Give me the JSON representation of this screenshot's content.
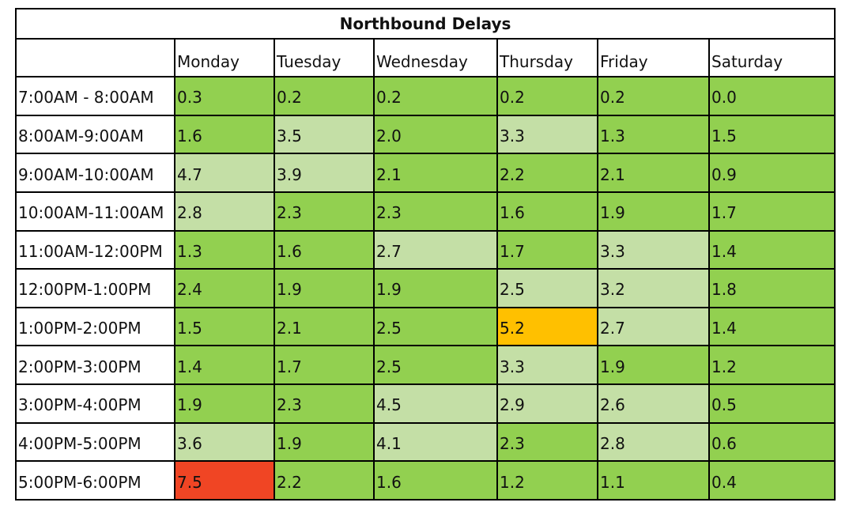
{
  "chart_data": {
    "type": "heatmap",
    "title": "Northbound Delays",
    "columns": [
      "Monday",
      "Tuesday",
      "Wednesday",
      "Thursday",
      "Friday",
      "Saturday"
    ],
    "rows": [
      "7:00AM - 8:00AM",
      "8:00AM-9:00AM",
      "9:00AM-10:00AM",
      "10:00AM-11:00AM",
      "11:00AM-12:00PM",
      "12:00PM-1:00PM",
      "1:00PM-2:00PM",
      "2:00PM-3:00PM",
      "3:00PM-4:00PM",
      "4:00PM-5:00PM",
      "5:00PM-6:00PM"
    ],
    "values": [
      [
        "0.3",
        "0.2",
        "0.2",
        "0.2",
        "0.2",
        "0.0"
      ],
      [
        "1.6",
        "3.5",
        "2.0",
        "3.3",
        "1.3",
        "1.5"
      ],
      [
        "4.7",
        "3.9",
        "2.1",
        "2.2",
        "2.1",
        "0.9"
      ],
      [
        "2.8",
        "2.3",
        "2.3",
        "1.6",
        "1.9",
        "1.7"
      ],
      [
        "1.3",
        "1.6",
        "2.7",
        "1.7",
        "3.3",
        "1.4"
      ],
      [
        "2.4",
        "1.9",
        "1.9",
        "2.5",
        "3.2",
        "1.8"
      ],
      [
        "1.5",
        "2.1",
        "2.5",
        "5.2",
        "2.7",
        "1.4"
      ],
      [
        "1.4",
        "1.7",
        "2.5",
        "3.3",
        "1.9",
        "1.2"
      ],
      [
        "1.9",
        "2.3",
        "4.5",
        "2.9",
        "2.6",
        "0.5"
      ],
      [
        "3.6",
        "1.9",
        "4.1",
        "2.3",
        "2.8",
        "0.6"
      ],
      [
        "7.5",
        "2.2",
        "1.6",
        "1.2",
        "1.1",
        "0.4"
      ]
    ],
    "colors": {
      "low": "#92d050",
      "medium": "#c4dfa6",
      "high": "#ffc000",
      "very_high": "#f04524"
    },
    "levels": [
      [
        "low",
        "low",
        "low",
        "low",
        "low",
        "low"
      ],
      [
        "low",
        "medium",
        "low",
        "medium",
        "low",
        "low"
      ],
      [
        "medium",
        "medium",
        "low",
        "low",
        "low",
        "low"
      ],
      [
        "medium",
        "low",
        "low",
        "low",
        "low",
        "low"
      ],
      [
        "low",
        "low",
        "medium",
        "low",
        "medium",
        "low"
      ],
      [
        "low",
        "low",
        "low",
        "medium",
        "medium",
        "low"
      ],
      [
        "low",
        "low",
        "low",
        "high",
        "medium",
        "low"
      ],
      [
        "low",
        "low",
        "low",
        "medium",
        "low",
        "low"
      ],
      [
        "low",
        "low",
        "medium",
        "medium",
        "medium",
        "low"
      ],
      [
        "medium",
        "low",
        "medium",
        "low",
        "medium",
        "low"
      ],
      [
        "very_high",
        "low",
        "low",
        "low",
        "low",
        "low"
      ]
    ]
  }
}
